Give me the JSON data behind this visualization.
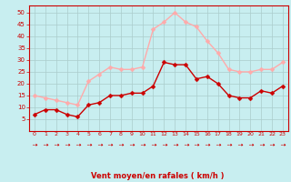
{
  "hours": [
    0,
    1,
    2,
    3,
    4,
    5,
    6,
    7,
    8,
    9,
    10,
    11,
    12,
    13,
    14,
    15,
    16,
    17,
    18,
    19,
    20,
    21,
    22,
    23
  ],
  "vent_moyen": [
    7,
    9,
    9,
    7,
    6,
    11,
    12,
    15,
    15,
    16,
    16,
    19,
    29,
    28,
    28,
    22,
    23,
    20,
    15,
    14,
    14,
    17,
    16,
    19
  ],
  "rafales": [
    15,
    14,
    13,
    12,
    11,
    21,
    24,
    27,
    26,
    26,
    27,
    43,
    46,
    50,
    46,
    44,
    38,
    33,
    26,
    25,
    25,
    26,
    26,
    29
  ],
  "line_moyen_color": "#cc0000",
  "line_rafales_color": "#ffaaaa",
  "marker_size": 2.5,
  "bg_color": "#c8eef0",
  "grid_color": "#aacccc",
  "xlabel": "Vent moyen/en rafales ( km/h )",
  "xlabel_color": "#cc0000",
  "tick_color": "#cc0000",
  "ylim": [
    0,
    53
  ],
  "yticks": [
    5,
    10,
    15,
    20,
    25,
    30,
    35,
    40,
    45,
    50
  ]
}
